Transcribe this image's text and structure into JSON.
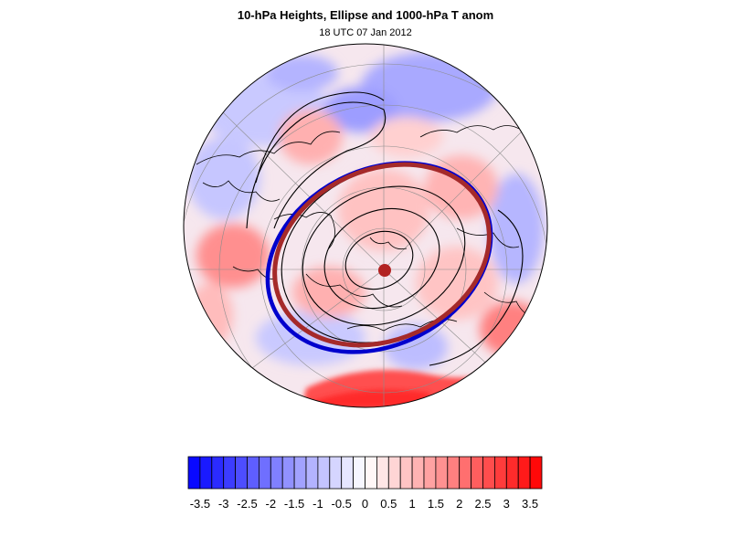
{
  "title": "10-hPa Heights, Ellipse and 1000-hPa T anom",
  "subtitle": "18 UTC 07 Jan 2012",
  "map": {
    "projection": "north-polar-stereographic",
    "field": "1000-hPa T anom",
    "contours": "10-hPa Heights",
    "ellipse_colors": {
      "fitted": "#a52a2a",
      "reference": "#0000cd"
    },
    "center_marker_color": "#b22222"
  },
  "colorbar": {
    "levels": [
      -3.5,
      -3.25,
      -3,
      -2.75,
      -2.5,
      -2.25,
      -2,
      -1.75,
      -1.5,
      -1.25,
      -1,
      -0.75,
      -0.5,
      -0.25,
      0,
      0.25,
      0.5,
      0.75,
      1,
      1.25,
      1.5,
      1.75,
      2,
      2.25,
      2.5,
      2.75,
      3,
      3.25,
      3.5
    ],
    "tick_labels": [
      "-3.5",
      "-3",
      "-2.5",
      "-2",
      "-1.5",
      "-1",
      "-0.5",
      "0",
      "0.5",
      "1",
      "1.5",
      "2",
      "2.5",
      "3",
      "3.5"
    ],
    "colors": {
      "negative_max": "#0000ff",
      "neutral": "#ffffff",
      "positive_max": "#ff0000"
    }
  }
}
